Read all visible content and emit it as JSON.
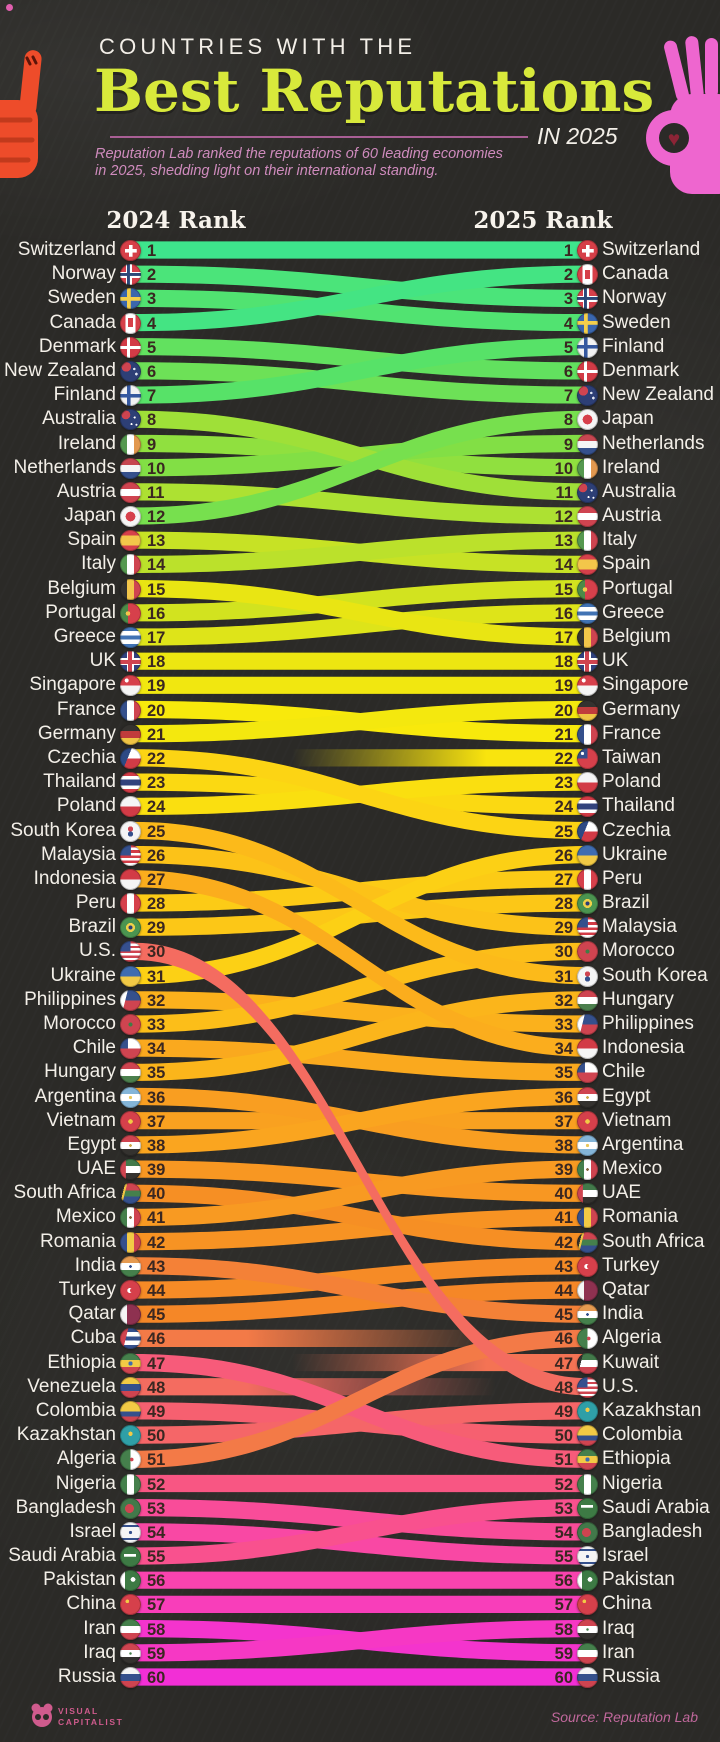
{
  "title": {
    "kicker": "COUNTRIES WITH THE",
    "main": "Best Reputations",
    "suffix": "IN 2025"
  },
  "subtitle": {
    "line1": "Reputation Lab ranked the reputations of 60 leading economies",
    "line2": "in 2025, shedding light on their international standing."
  },
  "columns": {
    "left": "2024 Rank",
    "right": "2025 Rank"
  },
  "footer": {
    "brand_line1": "VISUAL",
    "brand_line2": "CAPITALIST",
    "source": "Source: Reputation Lab"
  },
  "colors": {
    "background": "#2b2a27",
    "title_accent": "#d8e93b",
    "kicker_white": "#f3efe8",
    "subtitle_pink": "#cf8bbd",
    "divider_pink": "#a95f95",
    "label_white": "#f3efe8",
    "rank_number_dark": "#3a2721",
    "brand_pink": "#cf5b8d",
    "source_pink": "#c0689c",
    "hand_orange": "#ee4c2a",
    "hand_pink": "#ee66cf"
  },
  "palette": [
    [
      1,
      "#3ee58c"
    ],
    [
      5,
      "#57e268"
    ],
    [
      9,
      "#82df45"
    ],
    [
      13,
      "#bbe12b"
    ],
    [
      17,
      "#e9e513"
    ],
    [
      21,
      "#f8e90c"
    ],
    [
      25,
      "#fcd414"
    ],
    [
      29,
      "#fcc218"
    ],
    [
      33,
      "#fbb11c"
    ],
    [
      37,
      "#f9a120"
    ],
    [
      41,
      "#f79323"
    ],
    [
      44,
      "#f58727"
    ],
    [
      46,
      "#f37a47"
    ],
    [
      48,
      "#f46c60"
    ],
    [
      50,
      "#f66070"
    ],
    [
      52,
      "#f85683"
    ],
    [
      54,
      "#f94c99"
    ],
    [
      56,
      "#f943af"
    ],
    [
      58,
      "#f638c4"
    ],
    [
      60,
      "#f22fd6"
    ]
  ],
  "chart_data": {
    "type": "slope",
    "title": "Countries with the Best Reputations in 2025",
    "left_axis": "2024 Rank",
    "right_axis": "2025 Rank",
    "rank_range": [
      1,
      60
    ],
    "countries": [
      {
        "name": "Switzerland",
        "rank_2024": 1,
        "rank_2025": 1
      },
      {
        "name": "Norway",
        "rank_2024": 2,
        "rank_2025": 3
      },
      {
        "name": "Sweden",
        "rank_2024": 3,
        "rank_2025": 4
      },
      {
        "name": "Canada",
        "rank_2024": 4,
        "rank_2025": 2
      },
      {
        "name": "Denmark",
        "rank_2024": 5,
        "rank_2025": 6
      },
      {
        "name": "New Zealand",
        "rank_2024": 6,
        "rank_2025": 7
      },
      {
        "name": "Finland",
        "rank_2024": 7,
        "rank_2025": 5
      },
      {
        "name": "Australia",
        "rank_2024": 8,
        "rank_2025": 11
      },
      {
        "name": "Ireland",
        "rank_2024": 9,
        "rank_2025": 10
      },
      {
        "name": "Netherlands",
        "rank_2024": 10,
        "rank_2025": 9
      },
      {
        "name": "Austria",
        "rank_2024": 11,
        "rank_2025": 12
      },
      {
        "name": "Japan",
        "rank_2024": 12,
        "rank_2025": 8
      },
      {
        "name": "Spain",
        "rank_2024": 13,
        "rank_2025": 14
      },
      {
        "name": "Italy",
        "rank_2024": 14,
        "rank_2025": 13
      },
      {
        "name": "Belgium",
        "rank_2024": 15,
        "rank_2025": 17
      },
      {
        "name": "Portugal",
        "rank_2024": 16,
        "rank_2025": 15
      },
      {
        "name": "Greece",
        "rank_2024": 17,
        "rank_2025": 16
      },
      {
        "name": "UK",
        "rank_2024": 18,
        "rank_2025": 18
      },
      {
        "name": "Singapore",
        "rank_2024": 19,
        "rank_2025": 19
      },
      {
        "name": "France",
        "rank_2024": 20,
        "rank_2025": 21
      },
      {
        "name": "Germany",
        "rank_2024": 21,
        "rank_2025": 20
      },
      {
        "name": "Czechia",
        "rank_2024": 22,
        "rank_2025": 25
      },
      {
        "name": "Thailand",
        "rank_2024": 23,
        "rank_2025": 24
      },
      {
        "name": "Poland",
        "rank_2024": 24,
        "rank_2025": 23
      },
      {
        "name": "South Korea",
        "rank_2024": 25,
        "rank_2025": 31
      },
      {
        "name": "Malaysia",
        "rank_2024": 26,
        "rank_2025": 29
      },
      {
        "name": "Indonesia",
        "rank_2024": 27,
        "rank_2025": 34
      },
      {
        "name": "Peru",
        "rank_2024": 28,
        "rank_2025": 27
      },
      {
        "name": "Brazil",
        "rank_2024": 29,
        "rank_2025": 28
      },
      {
        "name": "U.S.",
        "rank_2024": 30,
        "rank_2025": 48
      },
      {
        "name": "Ukraine",
        "rank_2024": 31,
        "rank_2025": 26
      },
      {
        "name": "Philippines",
        "rank_2024": 32,
        "rank_2025": 33
      },
      {
        "name": "Morocco",
        "rank_2024": 33,
        "rank_2025": 30
      },
      {
        "name": "Chile",
        "rank_2024": 34,
        "rank_2025": 35
      },
      {
        "name": "Hungary",
        "rank_2024": 35,
        "rank_2025": 32
      },
      {
        "name": "Argentina",
        "rank_2024": 36,
        "rank_2025": 38
      },
      {
        "name": "Vietnam",
        "rank_2024": 37,
        "rank_2025": 37
      },
      {
        "name": "Egypt",
        "rank_2024": 38,
        "rank_2025": 36
      },
      {
        "name": "UAE",
        "rank_2024": 39,
        "rank_2025": 40
      },
      {
        "name": "South Africa",
        "rank_2024": 40,
        "rank_2025": 42
      },
      {
        "name": "Mexico",
        "rank_2024": 41,
        "rank_2025": 39
      },
      {
        "name": "Romania",
        "rank_2024": 42,
        "rank_2025": 41
      },
      {
        "name": "India",
        "rank_2024": 43,
        "rank_2025": 45
      },
      {
        "name": "Turkey",
        "rank_2024": 44,
        "rank_2025": 43
      },
      {
        "name": "Qatar",
        "rank_2024": 45,
        "rank_2025": 44
      },
      {
        "name": "Cuba",
        "rank_2024": 46,
        "rank_2025": null
      },
      {
        "name": "Ethiopia",
        "rank_2024": 47,
        "rank_2025": 51
      },
      {
        "name": "Venezuela",
        "rank_2024": 48,
        "rank_2025": null
      },
      {
        "name": "Colombia",
        "rank_2024": 49,
        "rank_2025": 50
      },
      {
        "name": "Kazakhstan",
        "rank_2024": 50,
        "rank_2025": 49
      },
      {
        "name": "Algeria",
        "rank_2024": 51,
        "rank_2025": 46
      },
      {
        "name": "Nigeria",
        "rank_2024": 52,
        "rank_2025": 52
      },
      {
        "name": "Bangladesh",
        "rank_2024": 53,
        "rank_2025": 54
      },
      {
        "name": "Israel",
        "rank_2024": 54,
        "rank_2025": 55
      },
      {
        "name": "Saudi Arabia",
        "rank_2024": 55,
        "rank_2025": 53
      },
      {
        "name": "Pakistan",
        "rank_2024": 56,
        "rank_2025": 56
      },
      {
        "name": "China",
        "rank_2024": 57,
        "rank_2025": 57
      },
      {
        "name": "Iran",
        "rank_2024": 58,
        "rank_2025": 59
      },
      {
        "name": "Iraq",
        "rank_2024": 59,
        "rank_2025": 58
      },
      {
        "name": "Russia",
        "rank_2024": 60,
        "rank_2025": 60
      },
      {
        "name": "Taiwan",
        "rank_2024": null,
        "rank_2025": 22
      },
      {
        "name": "Kuwait",
        "rank_2024": null,
        "rank_2025": 47
      }
    ]
  },
  "flags": {
    "Switzerland": "linear-gradient(#fff,#fff) 50% 50%/56% 17% no-repeat,linear-gradient(#fff,#fff) 50% 50%/17% 56% no-repeat,linear-gradient(#d63f48,#d63f48)",
    "Norway": "linear-gradient(#2c4879,#2c4879) 40% 0/14% 100% no-repeat,linear-gradient(#2c4879,#2c4879) 0 50%/100% 14% no-repeat,linear-gradient(#fff,#fff) 40% 0/30% 100% no-repeat,linear-gradient(#fff,#fff) 0 50%/100% 30% no-repeat,linear-gradient(#d6404b,#d6404b)",
    "Sweden": "linear-gradient(#f4cf4a,#f4cf4a) 40% 0/18% 100% no-repeat,linear-gradient(#f4cf4a,#f4cf4a) 0 50%/100% 18% no-repeat,linear-gradient(#3a66ad,#3a66ad)",
    "Canada": "linear-gradient(#d63f48,#d63f48) 50% 50%/24% 44% no-repeat,linear-gradient(90deg,#d63f48 27%,#fff 27% 73%,#d63f48 73%)",
    "Denmark": "linear-gradient(#fff,#fff) 40% 0/15% 100% no-repeat,linear-gradient(#fff,#fff) 0 50%/100% 15% no-repeat,linear-gradient(#d23b46,#d23b46)",
    "New Zealand": "radial-gradient(circle at 68% 38%,#e0e6f2 0 6%,rgba(0,0,0,0) 7%),radial-gradient(circle at 78% 62%,#e0e6f2 0 6%,rgba(0,0,0,0) 7%),radial-gradient(circle at 30% 28%,#cf4450 0 22%,rgba(0,0,0,0) 23%),linear-gradient(#2d3f76,#2d3f76)",
    "Finland": "linear-gradient(#35589f,#35589f) 40% 0/17% 100% no-repeat,linear-gradient(#35589f,#35589f) 0 50%/100% 17% no-repeat,linear-gradient(#f2f2f2,#f2f2f2)",
    "Australia": "radial-gradient(circle at 70% 40%,#fff 0 5%,rgba(0,0,0,0) 6%),radial-gradient(circle at 55% 72%,#fff 0 5%,rgba(0,0,0,0) 6%),radial-gradient(circle at 78% 75%,#fff 0 4%,rgba(0,0,0,0) 5%),radial-gradient(circle at 28% 28%,#cf4450 0 20%,rgba(0,0,0,0) 21%),linear-gradient(#2d3f76,#2d3f76)",
    "Ireland": "linear-gradient(90deg,#55984f 33%,#fff 33% 67%,#e2984f 67%)",
    "Netherlands": "linear-gradient(#c64650 33%,#f5f5f5 33% 67%,#35508c 67%)",
    "Austria": "linear-gradient(#cf4450 33%,#fff 33% 67%,#cf4450 67%)",
    "Japan": "radial-gradient(circle,#d6404b 0 32%,#f5f5f5 33%)",
    "Spain": "linear-gradient(#d6404b 27%,#f3c64a 27% 73%,#d6404b 73%)",
    "Italy": "linear-gradient(90deg,#55984f 33%,#fff 33% 67%,#cf4450 67%)",
    "Belgium": "linear-gradient(90deg,#34322f 33%,#f3c64a 33% 67%,#cf4450 67%)",
    "Portugal": "radial-gradient(circle at 38% 50%,#f3c64a 0 13%,rgba(0,0,0,0) 14%),linear-gradient(90deg,#4c8a48 38%,#d6404b 38%)",
    "Greece": "linear-gradient(#4173b4 20%,#fff 20% 40%,#4173b4 40% 60%,#fff 60% 80%,#4173b4 80%)",
    "UK": "linear-gradient(#cf4450,#cf4450) 0 50%/100% 20% no-repeat,linear-gradient(#cf4450,#cf4450) 50% 0/20% 100% no-repeat,linear-gradient(#fff,#fff) 0 50%/100% 34% no-repeat,linear-gradient(#fff,#fff) 50% 0/34% 100% no-repeat,linear-gradient(#31427e,#31427e)",
    "Singapore": "radial-gradient(circle at 32% 26%,#fff 0 9%,rgba(0,0,0,0) 10%),linear-gradient(#d6404b 50%,#f5f5f5 50%)",
    "France": "linear-gradient(90deg,#35508c 33%,#fff 33% 67%,#cf4450 67%)",
    "Germany": "linear-gradient(#34322f 33%,#c03c3c 33% 67%,#efc444 67%)",
    "Czechia": "linear-gradient(112deg,#2d4a84 40%,rgba(0,0,0,0) 40%),linear-gradient(#fff 50%,#d23b46 50%)",
    "Thailand": "linear-gradient(#d23b46 18%,#fff 18% 36%,#32427c 36% 64%,#fff 64% 82%,#d23b46 82%)",
    "Poland": "linear-gradient(#f5f5f5 50%,#d23b46 50%)",
    "South Korea": "radial-gradient(circle at 50% 38%,#cf4450 0 15%,rgba(0,0,0,0) 16%),radial-gradient(circle at 50% 62%,#35508c 0 15%,rgba(0,0,0,0) 16%),linear-gradient(#f5f5f5,#f5f5f5)",
    "Malaysia": "linear-gradient(#35508c,#35508c) 0 0/52% 50% no-repeat,repeating-linear-gradient(#d23b46 0 2.6px,#fff 2.6px 5.2px)",
    "Indonesia": "linear-gradient(#d23b46 50%,#f5f5f5 50%)",
    "Peru": "linear-gradient(90deg,#d6404b 33%,#fff 33% 67%,#d6404b 67%)",
    "Brazil": "radial-gradient(circle,#2d3f76 0 13%,#efd049 14% 30%,rgba(0,0,0,0) 31%),linear-gradient(#4b9450,#4b9450)",
    "U.S.": "linear-gradient(#36508e,#36508e) 0 0/50% 50% no-repeat,repeating-linear-gradient(#cf4450 0 2.4px,#fff 2.4px 4.8px)",
    "Ukraine": "linear-gradient(#3f6cb0 50%,#f2ca45 50%)",
    "Philippines": "linear-gradient(104deg,#fff 30%,rgba(0,0,0,0) 30%),linear-gradient(#35508c 50%,#cf4450 50%)",
    "Morocco": "radial-gradient(circle,#3f7d45 0 13%,rgba(0,0,0,0) 14%),linear-gradient(#cf4450,#cf4450)",
    "Chile": "linear-gradient(#35508c,#35508c) 0 0/38% 50% no-repeat,linear-gradient(#fff 50%,#cf4450 50%)",
    "Hungary": "linear-gradient(#cf4450 33%,#fff 33% 67%,#4b7f4d 67%)",
    "Argentina": "radial-gradient(circle,#e8c75a 0 11%,rgba(0,0,0,0) 12%),linear-gradient(#84b5d8 33%,#fff 33% 67%,#84b5d8 67%)",
    "Vietnam": "radial-gradient(circle,#f2ca45 0 15%,rgba(0,0,0,0) 16%),linear-gradient(#d6404b,#d6404b)",
    "Egypt": "radial-gradient(circle,#cfa94c 0 9%,rgba(0,0,0,0) 10%),linear-gradient(#cf4450 33%,#fff 33% 67%,#34322f 67%)",
    "UAE": "linear-gradient(#cf4450,#cf4450) 0 0/28% 100% no-repeat,linear-gradient(#42794a 33%,#fff 33% 67%,#34322f 67%)",
    "South Africa": "linear-gradient(104deg,#34322f 20%,#efc444 20% 28%,rgba(0,0,0,0) 28%),linear-gradient(#cf4450 36%,#45804c 36% 64%,#35508c 64%)",
    "Mexico": "radial-gradient(circle,#8a6a43 0 9%,rgba(0,0,0,0) 10%),linear-gradient(90deg,#45804c 33%,#fff 33% 67%,#cf4450 67%)",
    "Romania": "linear-gradient(90deg,#35508c 33%,#f2ca45 33% 67%,#cf4450 67%)",
    "India": "radial-gradient(circle,#35508c 0 9%,rgba(0,0,0,0) 10%),linear-gradient(#e59a50 33%,#fff 33% 67%,#45804c 67%)",
    "Turkey": "radial-gradient(circle at 56% 50%,#d6404b 0 11%,rgba(0,0,0,0) 12%),radial-gradient(circle at 46% 50%,#fff 0 15%,rgba(0,0,0,0) 16%),linear-gradient(#d6404b,#d6404b)",
    "Qatar": "linear-gradient(90deg,#f5f5f5 34%,#8e3150 34%)",
    "Cuba": "linear-gradient(104deg,#cf4450 32%,rgba(0,0,0,0) 32%),linear-gradient(#35508c 20%,#fff 20% 40%,#35508c 40% 60%,#fff 60% 80%,#35508c 80%)",
    "Ethiopia": "radial-gradient(circle,#3f6cb0 0 14%,rgba(0,0,0,0) 15%),linear-gradient(#45804c 33%,#f2ca45 33% 67%,#cf4450 67%)",
    "Venezuela": "linear-gradient(#f2ca45 33%,#35508c 33% 67%,#cf4450 67%)",
    "Colombia": "linear-gradient(#f2ca45 50%,#35508c 50% 75%,#cf4450 75%)",
    "Kazakhstan": "radial-gradient(circle at 50% 42%,#f2ca45 0 13%,rgba(0,0,0,0) 14%),linear-gradient(#2f9fa7,#2f9fa7)",
    "Algeria": "radial-gradient(circle at 56% 50%,#cf4450 0 11%,rgba(0,0,0,0) 12%),linear-gradient(90deg,#45804c 50%,#fff 50%)",
    "Nigeria": "linear-gradient(90deg,#45804c 33%,#fff 33% 67%,#45804c 67%)",
    "Bangladesh": "radial-gradient(circle at 45% 50%,#cf4450 0 28%,rgba(0,0,0,0) 29%),linear-gradient(#42794a,#42794a)",
    "Israel": "linear-gradient(#35508c,#35508c) 50% 15%/100% 11% no-repeat,linear-gradient(#35508c,#35508c) 50% 85%/100% 11% no-repeat,radial-gradient(circle,#35508c 0 11%,rgba(0,0,0,0) 12%),linear-gradient(#f5f5f5,#f5f5f5)",
    "Saudi Arabia": "linear-gradient(#fff,#fff) 50% 42%/58% 13% no-repeat,linear-gradient(#3d7a44,#3d7a44)",
    "Pakistan": "radial-gradient(circle at 62% 45%,#fff 0 13%,rgba(0,0,0,0) 14%),linear-gradient(90deg,#fff 24%,#3d7a44 24%)",
    "China": "radial-gradient(circle at 35% 35%,#f2ca45 0 9%,rgba(0,0,0,0) 10%),linear-gradient(#d6404b,#d6404b)",
    "Iran": "linear-gradient(#45804c 33%,#fff 33% 67%,#cf4450 67%)",
    "Iraq": "radial-gradient(circle,#45804c 0 8%,rgba(0,0,0,0) 9%),linear-gradient(#cf4450 33%,#fff 33% 67%,#34322f 67%)",
    "Russia": "linear-gradient(#f5f5f5 33%,#35508c 33% 67%,#cf4450 67%)",
    "Taiwan": "radial-gradient(circle at 26% 26%,#fff 0 7%,rgba(0,0,0,0) 8%),linear-gradient(#35508c,#35508c) 0 0/50% 50% no-repeat,linear-gradient(#d6404b,#d6404b)",
    "Kuwait": "linear-gradient(104deg,#34322f 24%,rgba(0,0,0,0) 24%),linear-gradient(#42794a 33%,#fff 33% 67%,#cf4450 67%)"
  }
}
